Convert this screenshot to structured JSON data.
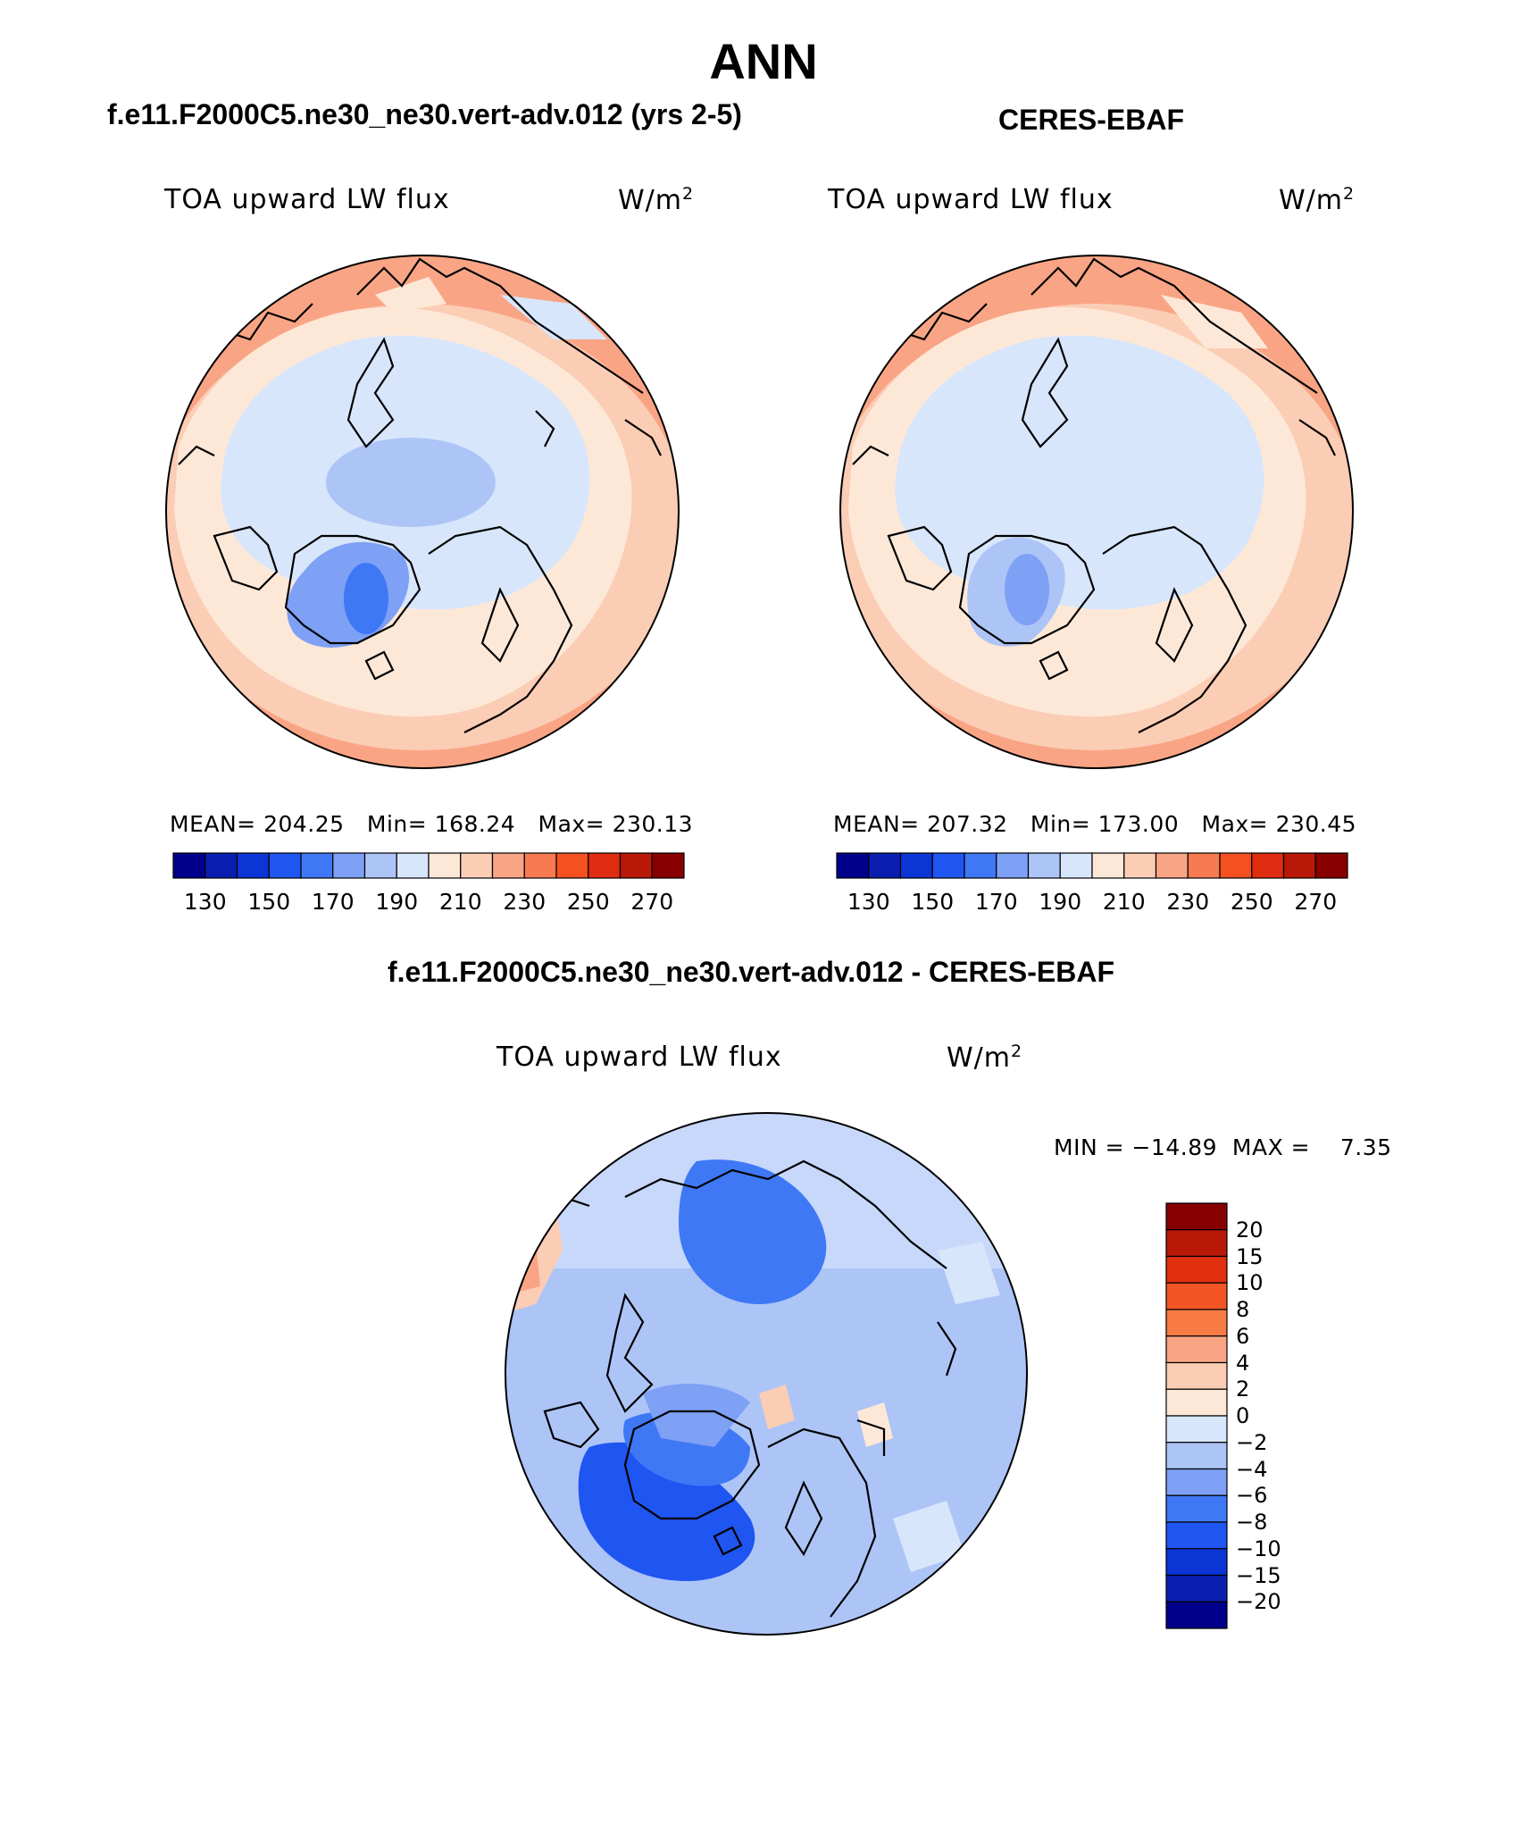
{
  "season": "ANN",
  "panels": [
    {
      "case": "f.e11.F2000C5.ne30_ne30.vert-adv.012 (yrs 2-5)",
      "field": "TOA upward LW flux",
      "units_base": "W/m",
      "units_exp": "2",
      "stats": {
        "mean_label": "MEAN=",
        "mean": "204.25",
        "min_label": "Min=",
        "min": "168.24",
        "max_label": "Max=",
        "max": "230.13"
      }
    },
    {
      "case": "CERES-EBAF",
      "field": "TOA upward LW flux",
      "units_base": "W/m",
      "units_exp": "2",
      "stats": {
        "mean_label": "MEAN=",
        "mean": "207.32",
        "min_label": "Min=",
        "min": "173.00",
        "max_label": "Max=",
        "max": "230.45"
      }
    },
    {
      "case": "f.e11.F2000C5.ne30_ne30.vert-adv.012 - CERES-EBAF",
      "field": "TOA upward LW flux",
      "units_base": "W/m",
      "units_exp": "2",
      "minmax": "MIN = −14.89  MAX =    7.35"
    }
  ],
  "abs_colorbar": {
    "colors": [
      "#00008a",
      "#0a1fb0",
      "#0b35d4",
      "#1f55f0",
      "#3f78f5",
      "#7ea0f5",
      "#adc4f7",
      "#d8e6fb",
      "#fde8d8",
      "#fbcdb5",
      "#f9a585",
      "#f87a50",
      "#f45020",
      "#e02c10",
      "#b81808",
      "#870000"
    ],
    "ticks": [
      "130",
      "150",
      "170",
      "190",
      "210",
      "230",
      "250",
      "270"
    ]
  },
  "diff_colorbar": {
    "colors": [
      "#870000",
      "#b81808",
      "#e03010",
      "#f45525",
      "#f87a45",
      "#f9a585",
      "#fbcdb5",
      "#fde8d8",
      "#d8e6fb",
      "#adc4f7",
      "#7ea0f5",
      "#3f78f5",
      "#1f55f0",
      "#0b35d4",
      "#0a1fb0",
      "#00008a"
    ],
    "ticks": [
      "20",
      "15",
      "10",
      "8",
      "6",
      "4",
      "2",
      "0",
      "−2",
      "−4",
      "−6",
      "−8",
      "−10",
      "−15",
      "−20"
    ]
  }
}
